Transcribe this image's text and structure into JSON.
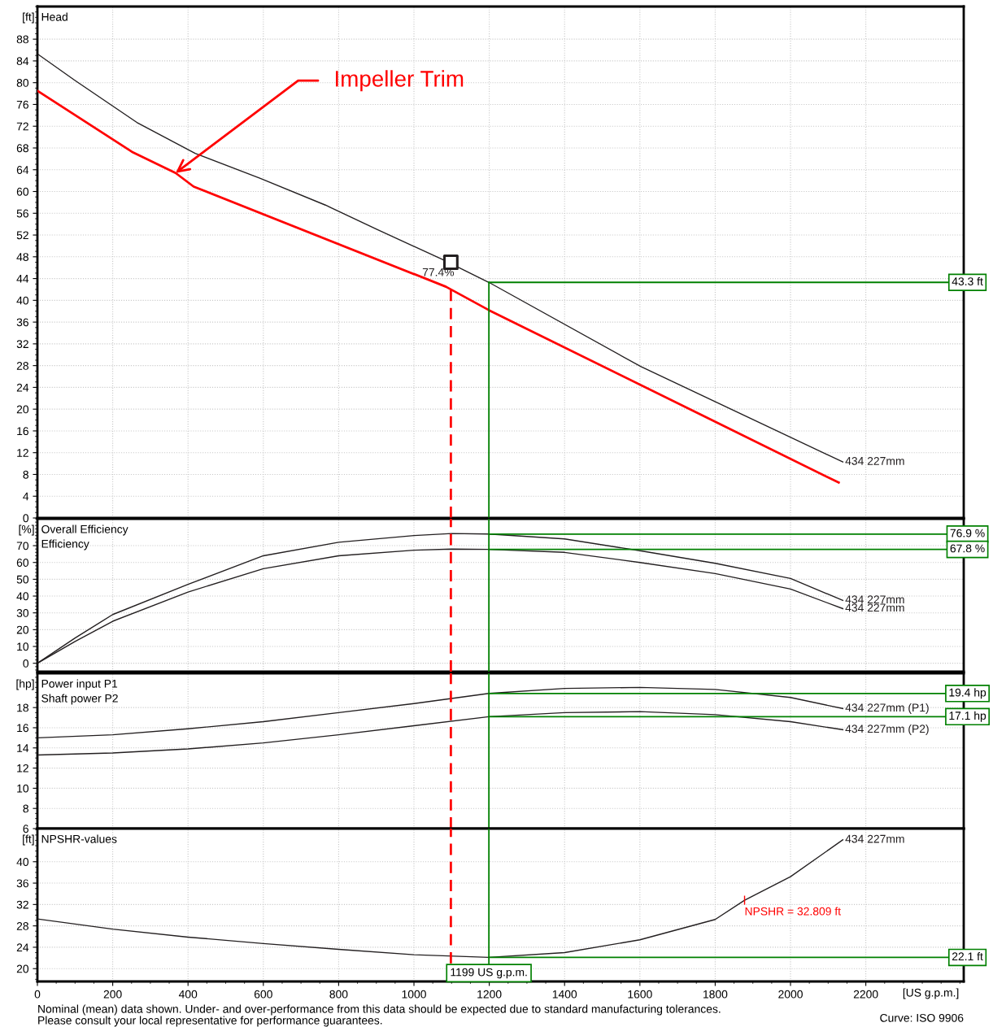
{
  "chart_data": [
    {
      "type": "line",
      "ylabel": "[ft]",
      "annotations": [
        "Head",
        {
          "text": "Impeller Trim",
          "x": 367,
          "y": 63.4
        },
        {
          "text": "77.4%",
          "x": 1098,
          "y": 47
        }
      ],
      "xlim": [
        0,
        2460
      ],
      "xticks": [
        0,
        200,
        400,
        600,
        800,
        1000,
        1200,
        1400,
        1600,
        1800,
        2000,
        2200
      ],
      "ylim": [
        0,
        94
      ],
      "yticks": [
        0,
        4,
        8,
        12,
        16,
        20,
        24,
        28,
        32,
        36,
        40,
        44,
        48,
        52,
        56,
        60,
        64,
        68,
        72,
        76,
        80,
        84,
        88
      ],
      "tick_labels": "y",
      "grid": true,
      "series": [
        {
          "name": "434 227mm",
          "color": "#231f20",
          "x": [
            0,
            100,
            264,
            419,
            592,
            765,
            903,
            1076,
            1199,
            1603,
            2139
          ],
          "values": [
            85.3,
            80.4,
            72.7,
            67.0,
            62.4,
            57.5,
            53.0,
            47.5,
            43.3,
            27.8,
            10.3
          ]
        },
        {
          "color": "#ff0000",
          "x": [
            0,
            251,
            367,
            415,
            1085,
            1199,
            2128
          ],
          "values": [
            78.5,
            67.3,
            63.4,
            60.9,
            42.5,
            38.2,
            6.5
          ]
        },
        {
          "type": "scatter",
          "marker": "square",
          "color": "#231f20",
          "x": [
            1098
          ],
          "values": [
            47
          ]
        }
      ],
      "ref_lines": [
        {
          "axis": "x",
          "value": 1098,
          "color": "#ff0000",
          "line_style": "dashed"
        },
        {
          "axis": "x",
          "value": 1199,
          "color": "#008000"
        },
        {
          "axis": "y",
          "value": 43.3,
          "label": "43.3 ft",
          "color": "#008000"
        }
      ]
    },
    {
      "type": "line",
      "ylabel": "[%]",
      "annotations": [
        "Overall Efficiency",
        "Efficiency"
      ],
      "xlim": [
        0,
        2460
      ],
      "xticks": [
        0,
        200,
        400,
        600,
        800,
        1000,
        1200,
        1400,
        1600,
        1800,
        2000,
        2200
      ],
      "ylim": [
        -5,
        86
      ],
      "yticks": [
        0,
        10,
        20,
        30,
        40,
        50,
        60,
        70
      ],
      "tick_labels": "y",
      "grid": true,
      "series": [
        {
          "name": "434 227mm",
          "color": "#231f20",
          "x": [
            0,
            100,
            200,
            400,
            600,
            800,
            1000,
            1100,
            1199,
            1400,
            1600,
            1800,
            2000,
            2139
          ],
          "values": [
            0,
            15,
            29,
            47,
            64,
            72,
            76,
            77.2,
            76.9,
            74,
            67,
            59.5,
            50.5,
            37.4
          ]
        },
        {
          "name": "434 227mm",
          "color": "#231f20",
          "x": [
            0,
            100,
            200,
            400,
            600,
            800,
            1000,
            1100,
            1199,
            1400,
            1600,
            1800,
            2000,
            2139
          ],
          "values": [
            0,
            13,
            25,
            42.4,
            56.3,
            64,
            67.3,
            68,
            67.8,
            66,
            60,
            53.4,
            44.2,
            32.5
          ]
        }
      ],
      "ref_lines": [
        {
          "axis": "x",
          "value": 1098,
          "color": "#ff0000",
          "line_style": "dashed"
        },
        {
          "axis": "x",
          "value": 1199,
          "color": "#008000"
        },
        {
          "axis": "y",
          "value": 76.9,
          "label": "76.9 %",
          "color": "#008000"
        },
        {
          "axis": "y",
          "value": 67.8,
          "label": "67.8 %",
          "color": "#008000"
        }
      ]
    },
    {
      "type": "line",
      "ylabel": "[hp]",
      "annotations": [
        "Power input P1",
        "Shaft power P2"
      ],
      "xlim": [
        0,
        2460
      ],
      "xticks": [
        0,
        200,
        400,
        600,
        800,
        1000,
        1200,
        1400,
        1600,
        1800,
        2000,
        2200
      ],
      "ylim": [
        6,
        21.4
      ],
      "yticks": [
        6,
        8,
        10,
        12,
        14,
        16,
        18
      ],
      "tick_labels": "y",
      "grid": true,
      "series": [
        {
          "name": "434 227mm (P1)",
          "color": "#231f20",
          "x": [
            0,
            200,
            400,
            600,
            800,
            1000,
            1199,
            1400,
            1600,
            1800,
            2000,
            2139
          ],
          "values": [
            15.0,
            15.3,
            15.9,
            16.6,
            17.5,
            18.4,
            19.4,
            19.9,
            20.0,
            19.8,
            19.0,
            17.9
          ]
        },
        {
          "name": "434 227mm (P2)",
          "color": "#231f20",
          "x": [
            0,
            200,
            400,
            600,
            800,
            1000,
            1199,
            1400,
            1600,
            1800,
            2000,
            2139
          ],
          "values": [
            13.3,
            13.5,
            13.9,
            14.5,
            15.3,
            16.2,
            17.1,
            17.5,
            17.6,
            17.3,
            16.6,
            15.8
          ]
        }
      ],
      "ref_lines": [
        {
          "axis": "x",
          "value": 1098,
          "color": "#ff0000",
          "line_style": "dashed"
        },
        {
          "axis": "x",
          "value": 1199,
          "color": "#008000"
        },
        {
          "axis": "y",
          "value": 19.4,
          "label": "19.4 hp",
          "color": "#008000"
        },
        {
          "axis": "y",
          "value": 17.1,
          "label": "17.1 hp",
          "color": "#008000"
        }
      ]
    },
    {
      "type": "line",
      "ylabel": "[ft]",
      "xlabel": "[US g.p.m.]",
      "annotations": [
        "NPSHR-values",
        {
          "text": "NPSHR = 32.809 ft",
          "x": 1878,
          "y": 32.8
        },
        "Nominal (mean) data shown. Under- and over-performance from this data should be expected due to standard manufacturing tolerances.",
        "Please consult your local representative for performance guarantees.",
        "Curve: ISO 9906"
      ],
      "xlim": [
        0,
        2460
      ],
      "xticks": [
        0,
        200,
        400,
        600,
        800,
        1000,
        1200,
        1400,
        1600,
        1800,
        2000,
        2200
      ],
      "ylim": [
        17.6,
        46.2
      ],
      "yticks": [
        20,
        24,
        28,
        32,
        36,
        40
      ],
      "grid": true,
      "series": [
        {
          "name": "434 227mm",
          "color": "#231f20",
          "x": [
            0,
            200,
            400,
            600,
            800,
            1000,
            1199,
            1400,
            1600,
            1800,
            1878,
            2000,
            2139
          ],
          "values": [
            29.3,
            27.4,
            25.9,
            24.7,
            23.6,
            22.6,
            22.1,
            23.0,
            25.4,
            29.2,
            32.8,
            37.2,
            44.1
          ]
        }
      ],
      "ref_lines": [
        {
          "axis": "x",
          "value": 1098,
          "color": "#ff0000",
          "line_style": "dashed"
        },
        {
          "axis": "x",
          "value": 1199,
          "label": "1199 US g.p.m.",
          "color": "#008000"
        },
        {
          "axis": "y",
          "value": 22.1,
          "label": "22.1 ft",
          "color": "#008000"
        }
      ]
    }
  ]
}
